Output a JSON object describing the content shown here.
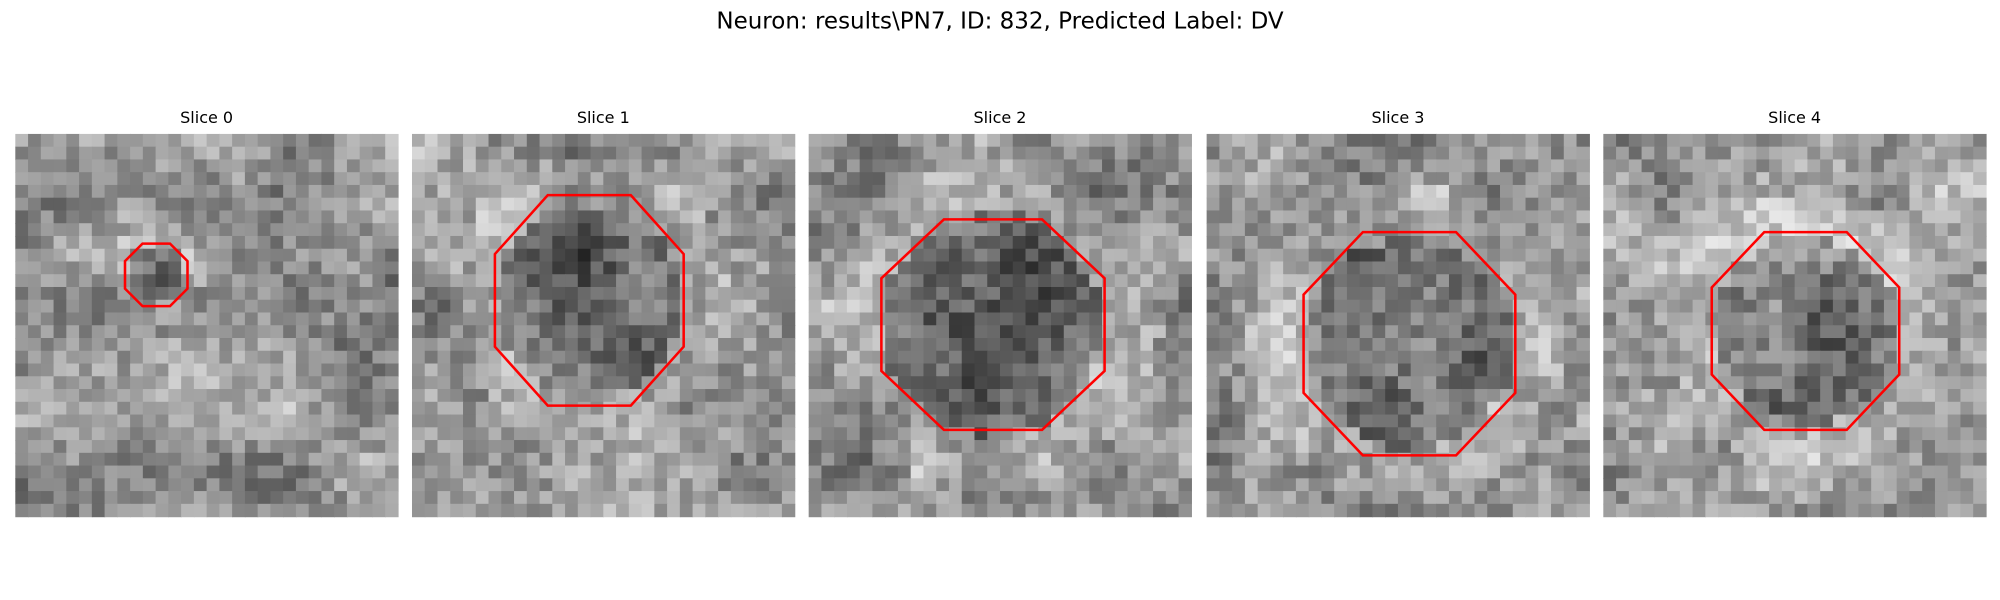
{
  "title": "Neuron: results\\PN7, ID: 832, Predicted Label: DV",
  "panels": [
    {
      "title": "Slice 0"
    },
    {
      "title": "Slice 1"
    },
    {
      "title": "Slice 2"
    },
    {
      "title": "Slice 3"
    },
    {
      "title": "Slice 4"
    }
  ]
}
